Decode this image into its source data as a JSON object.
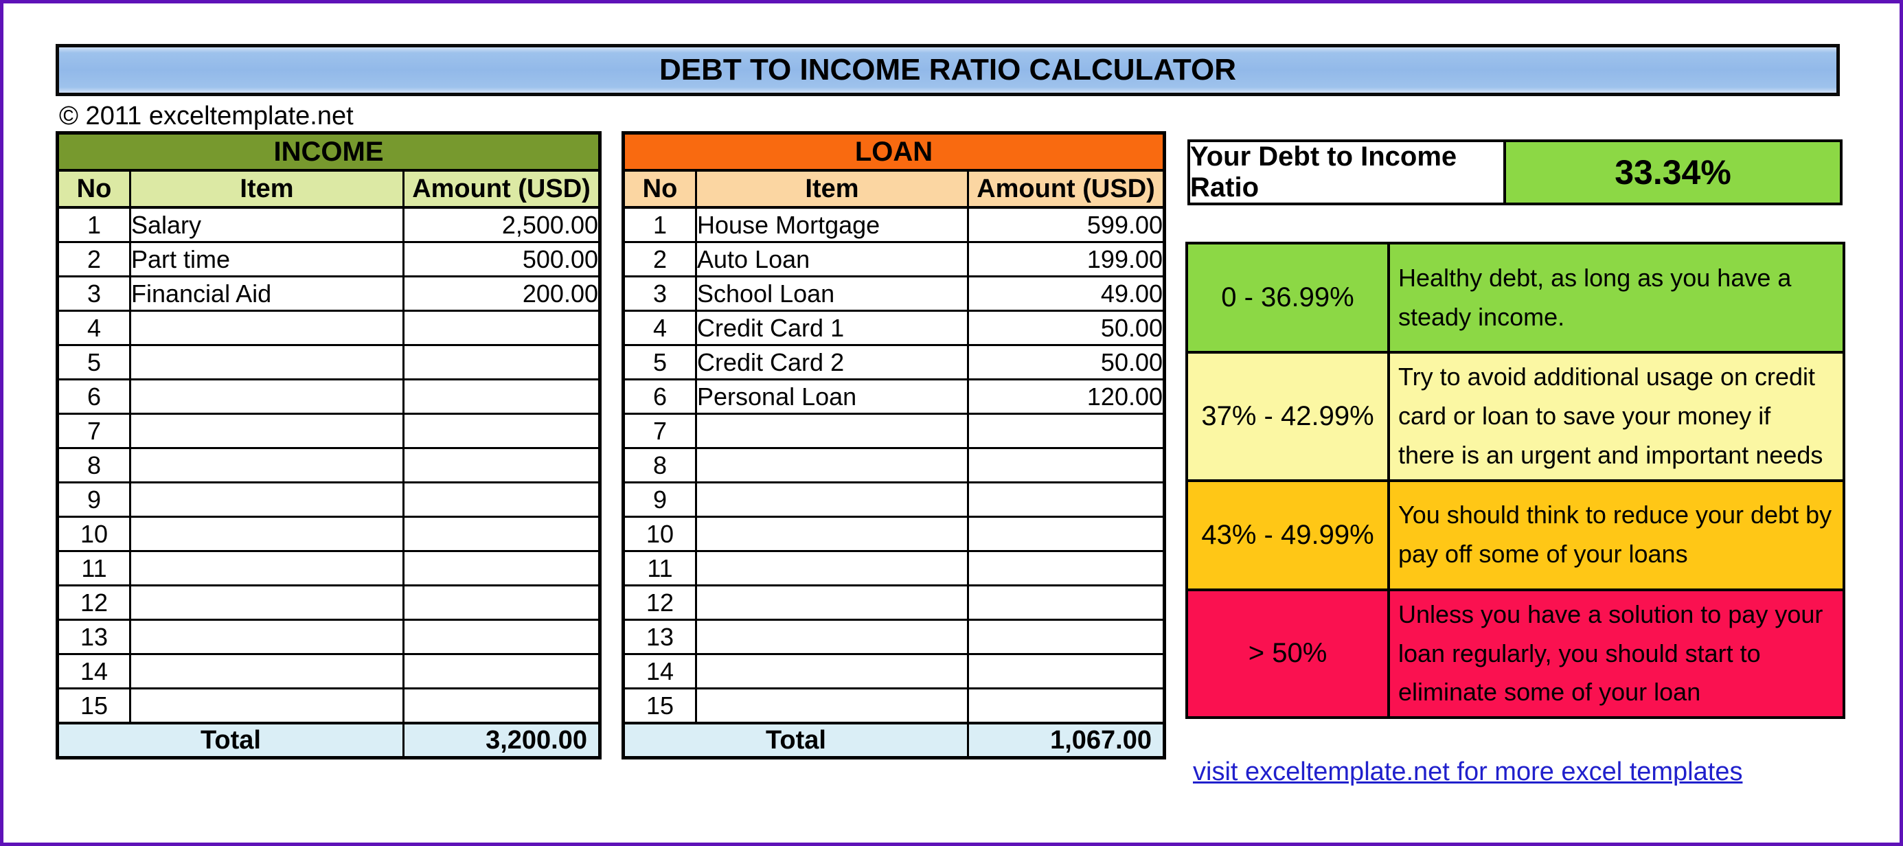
{
  "title": "DEBT TO INCOME RATIO CALCULATOR",
  "copyright": "© 2011 exceltemplate.net",
  "income": {
    "title": "INCOME",
    "columns": [
      "No",
      "Item",
      "Amount (USD)"
    ],
    "rows": [
      {
        "no": "1",
        "item": "Salary",
        "amount": "2,500.00"
      },
      {
        "no": "2",
        "item": "Part time",
        "amount": "500.00"
      },
      {
        "no": "3",
        "item": "Financial Aid",
        "amount": "200.00"
      },
      {
        "no": "4",
        "item": "",
        "amount": ""
      },
      {
        "no": "5",
        "item": "",
        "amount": ""
      },
      {
        "no": "6",
        "item": "",
        "amount": ""
      },
      {
        "no": "7",
        "item": "",
        "amount": ""
      },
      {
        "no": "8",
        "item": "",
        "amount": ""
      },
      {
        "no": "9",
        "item": "",
        "amount": ""
      },
      {
        "no": "10",
        "item": "",
        "amount": ""
      },
      {
        "no": "11",
        "item": "",
        "amount": ""
      },
      {
        "no": "12",
        "item": "",
        "amount": ""
      },
      {
        "no": "13",
        "item": "",
        "amount": ""
      },
      {
        "no": "14",
        "item": "",
        "amount": ""
      },
      {
        "no": "15",
        "item": "",
        "amount": ""
      }
    ],
    "total_label": "Total",
    "total_value": "3,200.00"
  },
  "loan": {
    "title": "LOAN",
    "columns": [
      "No",
      "Item",
      "Amount (USD)"
    ],
    "rows": [
      {
        "no": "1",
        "item": "House Mortgage",
        "amount": "599.00"
      },
      {
        "no": "2",
        "item": "Auto Loan",
        "amount": "199.00"
      },
      {
        "no": "3",
        "item": "School Loan",
        "amount": "49.00"
      },
      {
        "no": "4",
        "item": "Credit Card 1",
        "amount": "50.00"
      },
      {
        "no": "5",
        "item": "Credit Card 2",
        "amount": "50.00"
      },
      {
        "no": "6",
        "item": "Personal Loan",
        "amount": "120.00"
      },
      {
        "no": "7",
        "item": "",
        "amount": ""
      },
      {
        "no": "8",
        "item": "",
        "amount": ""
      },
      {
        "no": "9",
        "item": "",
        "amount": ""
      },
      {
        "no": "10",
        "item": "",
        "amount": ""
      },
      {
        "no": "11",
        "item": "",
        "amount": ""
      },
      {
        "no": "12",
        "item": "",
        "amount": ""
      },
      {
        "no": "13",
        "item": "",
        "amount": ""
      },
      {
        "no": "14",
        "item": "",
        "amount": ""
      },
      {
        "no": "15",
        "item": "",
        "amount": ""
      }
    ],
    "total_label": "Total",
    "total_value": "1,067.00"
  },
  "ratio": {
    "label": "Your Debt to Income Ratio",
    "value": "33.34%"
  },
  "guide": {
    "rows": [
      {
        "range": "0 - 36.99%",
        "description": "Healthy debt, as long as you have a steady income.",
        "color": "#8CD845"
      },
      {
        "range": "37% - 42.99%",
        "description": "Try to avoid additional usage on credit card or loan to save your money if there is an urgent and important needs",
        "color": "#FBF7A3"
      },
      {
        "range": "43% - 49.99%",
        "description": "You should think to reduce your debt by pay off some of your loans",
        "color": "#FFC716"
      },
      {
        "range": "> 50%",
        "description": "Unless you have a solution to pay your loan regularly, you should start to eliminate some of your loan",
        "color": "#FA1150"
      }
    ]
  },
  "footer_link": "visit exceltemplate.net for more excel templates",
  "colors": {
    "frame_border": "#5E12B8",
    "title_bg": "#92B9E9",
    "income_header_bg": "#77992E",
    "income_subheader_bg": "#DCE9A4",
    "loan_header_bg": "#F96A10",
    "loan_subheader_bg": "#FBD6A2",
    "total_row_bg": "#DAEEF6",
    "ratio_value_bg": "#8CD845",
    "link_color": "#2020CC"
  }
}
